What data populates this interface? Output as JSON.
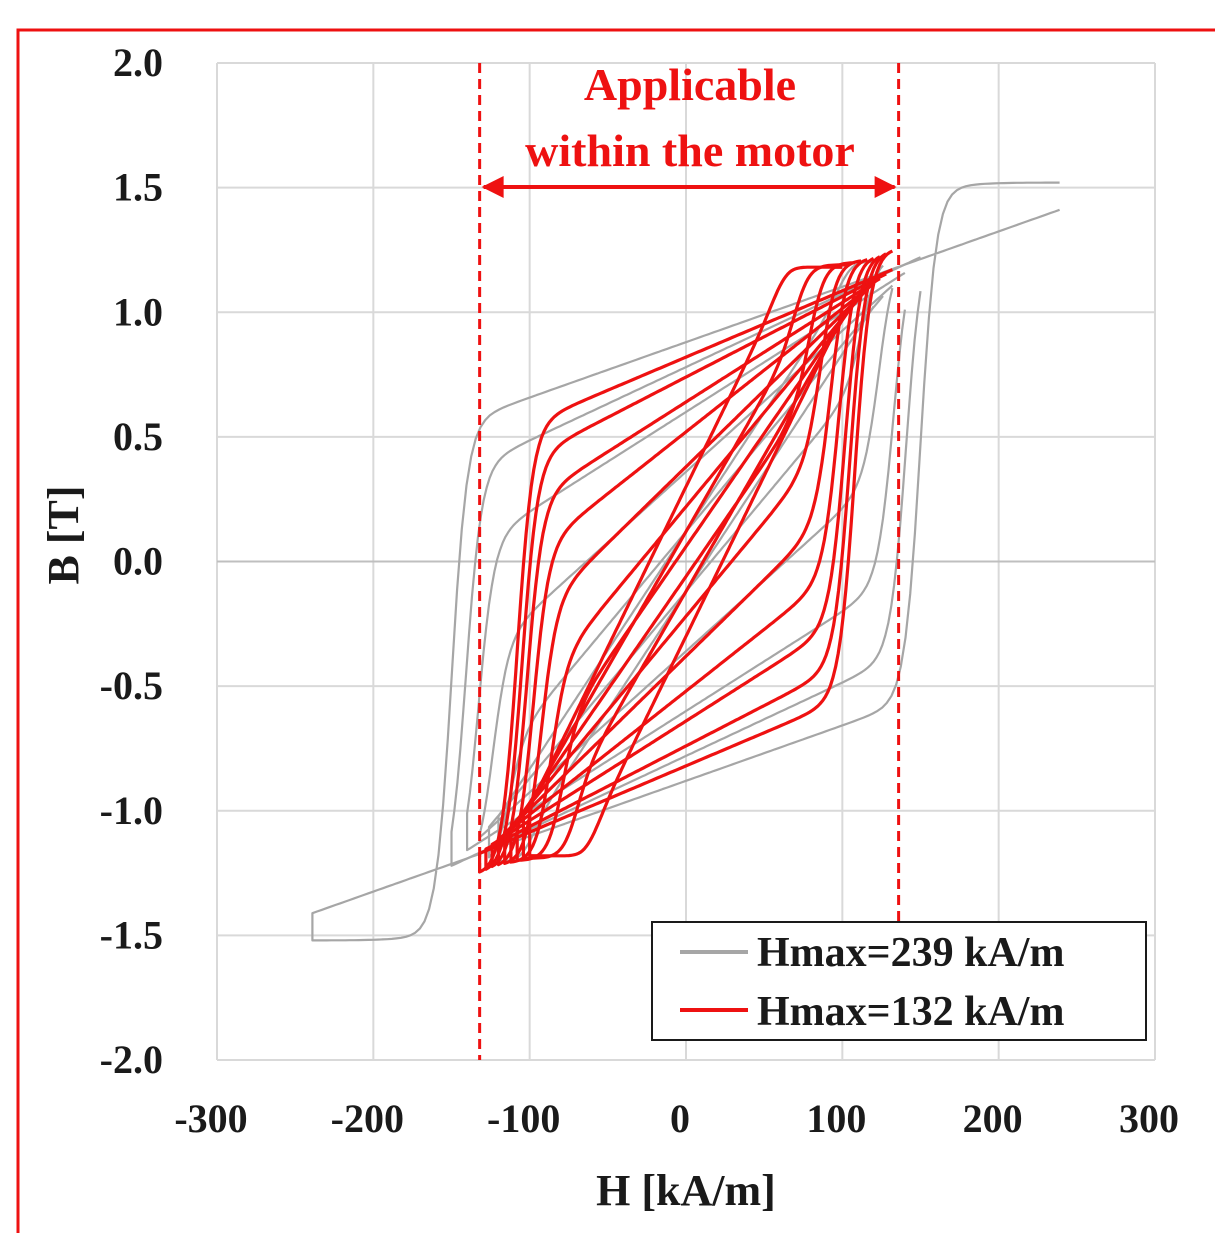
{
  "chart_data": {
    "type": "line",
    "xlabel": "H [kA/m]",
    "ylabel": "B [T]",
    "xlim": [
      -300,
      300
    ],
    "ylim": [
      -2.0,
      2.0
    ],
    "x_ticks": [
      "-300",
      "-200",
      "-100",
      "0",
      "100",
      "200",
      "300"
    ],
    "y_ticks": [
      "2.0",
      "1.5",
      "1.0",
      "0.5",
      "0.0",
      "-0.5",
      "-1.0",
      "-1.5",
      "-2.0"
    ],
    "grid": true,
    "legend_position": "bottom-right",
    "annotation": {
      "lines": [
        "Applicable",
        "within the motor"
      ],
      "x_range": [
        -132,
        136
      ]
    },
    "series": [
      {
        "name": "Hmax=239 kA/m",
        "color": "#a6a6a6",
        "loops": [
          {
            "hmax": 239,
            "bmax": 1.47,
            "hc": 150,
            "br": 0.88
          },
          {
            "hmax": 150,
            "bmax": 1.27,
            "hc": 141,
            "br": 0.78
          },
          {
            "hmax": 140,
            "bmax": 1.22,
            "hc": 133,
            "br": 0.6
          },
          {
            "hmax": 132,
            "bmax": 1.19,
            "hc": 124,
            "br": 0.36
          },
          {
            "hmax": 126,
            "bmax": 1.17,
            "hc": 114,
            "br": 0.12
          },
          {
            "hmax": 120,
            "bmax": 1.15,
            "hc": 102,
            "br": -0.12
          }
        ]
      },
      {
        "name": "Hmax=132 kA/m",
        "color": "#ee1111",
        "loops": [
          {
            "hmax": 132,
            "bmax": 1.21,
            "hc": 108,
            "br": 0.82
          },
          {
            "hmax": 128,
            "bmax": 1.2,
            "hc": 105,
            "br": 0.74
          },
          {
            "hmax": 124,
            "bmax": 1.19,
            "hc": 102,
            "br": 0.64
          },
          {
            "hmax": 120,
            "bmax": 1.18,
            "hc": 98,
            "br": 0.52
          },
          {
            "hmax": 116,
            "bmax": 1.17,
            "hc": 93,
            "br": 0.38
          },
          {
            "hmax": 112,
            "bmax": 1.16,
            "hc": 87,
            "br": 0.22
          },
          {
            "hmax": 108,
            "bmax": 1.15,
            "hc": 80,
            "br": 0.06
          },
          {
            "hmax": 104,
            "bmax": 1.14,
            "hc": 72,
            "br": -0.12
          },
          {
            "hmax": 100,
            "bmax": 1.13,
            "hc": 62,
            "br": -0.3
          }
        ]
      }
    ]
  }
}
